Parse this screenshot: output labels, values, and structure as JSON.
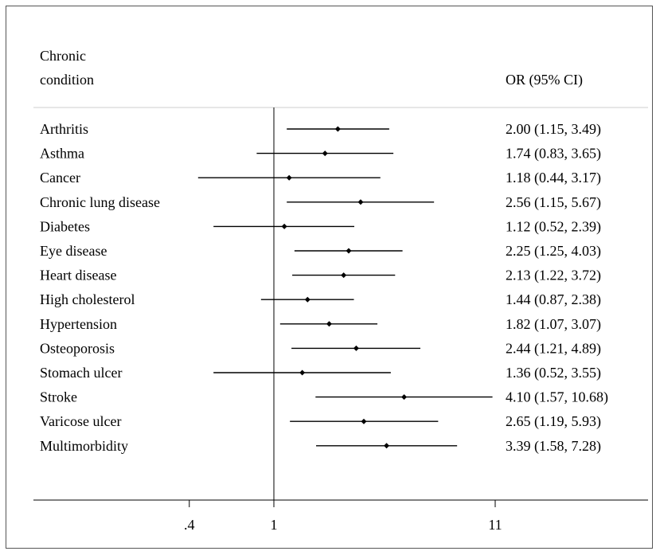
{
  "chart_data": {
    "type": "forest",
    "header": {
      "condition_col": [
        "Chronic",
        "condition"
      ],
      "or_col": "OR (95% CI)"
    },
    "x_scale": "log",
    "reference_line": 1,
    "x_ticks": [
      {
        "value": 0.4,
        "label": ".4"
      },
      {
        "value": 1,
        "label": "1"
      },
      {
        "value": 11,
        "label": "11"
      }
    ],
    "rows": [
      {
        "label": "Arthritis",
        "or": 2.0,
        "lo": 1.15,
        "hi": 3.49,
        "text": "2.00 (1.15, 3.49)"
      },
      {
        "label": "Asthma",
        "or": 1.74,
        "lo": 0.83,
        "hi": 3.65,
        "text": "1.74 (0.83, 3.65)"
      },
      {
        "label": "Cancer",
        "or": 1.18,
        "lo": 0.44,
        "hi": 3.17,
        "text": "1.18 (0.44, 3.17)"
      },
      {
        "label": "Chronic lung disease",
        "or": 2.56,
        "lo": 1.15,
        "hi": 5.67,
        "text": "2.56 (1.15, 5.67)"
      },
      {
        "label": "Diabetes",
        "or": 1.12,
        "lo": 0.52,
        "hi": 2.39,
        "text": "1.12 (0.52, 2.39)"
      },
      {
        "label": "Eye disease",
        "or": 2.25,
        "lo": 1.25,
        "hi": 4.03,
        "text": "2.25 (1.25, 4.03)"
      },
      {
        "label": "Heart disease",
        "or": 2.13,
        "lo": 1.22,
        "hi": 3.72,
        "text": "2.13 (1.22, 3.72)"
      },
      {
        "label": "High cholesterol",
        "or": 1.44,
        "lo": 0.87,
        "hi": 2.38,
        "text": "1.44 (0.87, 2.38)"
      },
      {
        "label": "Hypertension",
        "or": 1.82,
        "lo": 1.07,
        "hi": 3.07,
        "text": "1.82 (1.07, 3.07)"
      },
      {
        "label": "Osteoporosis",
        "or": 2.44,
        "lo": 1.21,
        "hi": 4.89,
        "text": "2.44 (1.21, 4.89)"
      },
      {
        "label": "Stomach ulcer",
        "or": 1.36,
        "lo": 0.52,
        "hi": 3.55,
        "text": "1.36 (0.52, 3.55)"
      },
      {
        "label": "Stroke",
        "or": 4.1,
        "lo": 1.57,
        "hi": 10.68,
        "text": "4.10 (1.57, 10.68)"
      },
      {
        "label": "Varicose ulcer",
        "or": 2.65,
        "lo": 1.19,
        "hi": 5.93,
        "text": "2.65 (1.19, 5.93)"
      },
      {
        "label": "Multimorbidity",
        "or": 3.39,
        "lo": 1.58,
        "hi": 7.28,
        "text": "3.39 (1.58, 7.28)"
      }
    ],
    "colors": {
      "line": "#000000",
      "frame": "#555555",
      "divider": "#cccccc"
    }
  }
}
